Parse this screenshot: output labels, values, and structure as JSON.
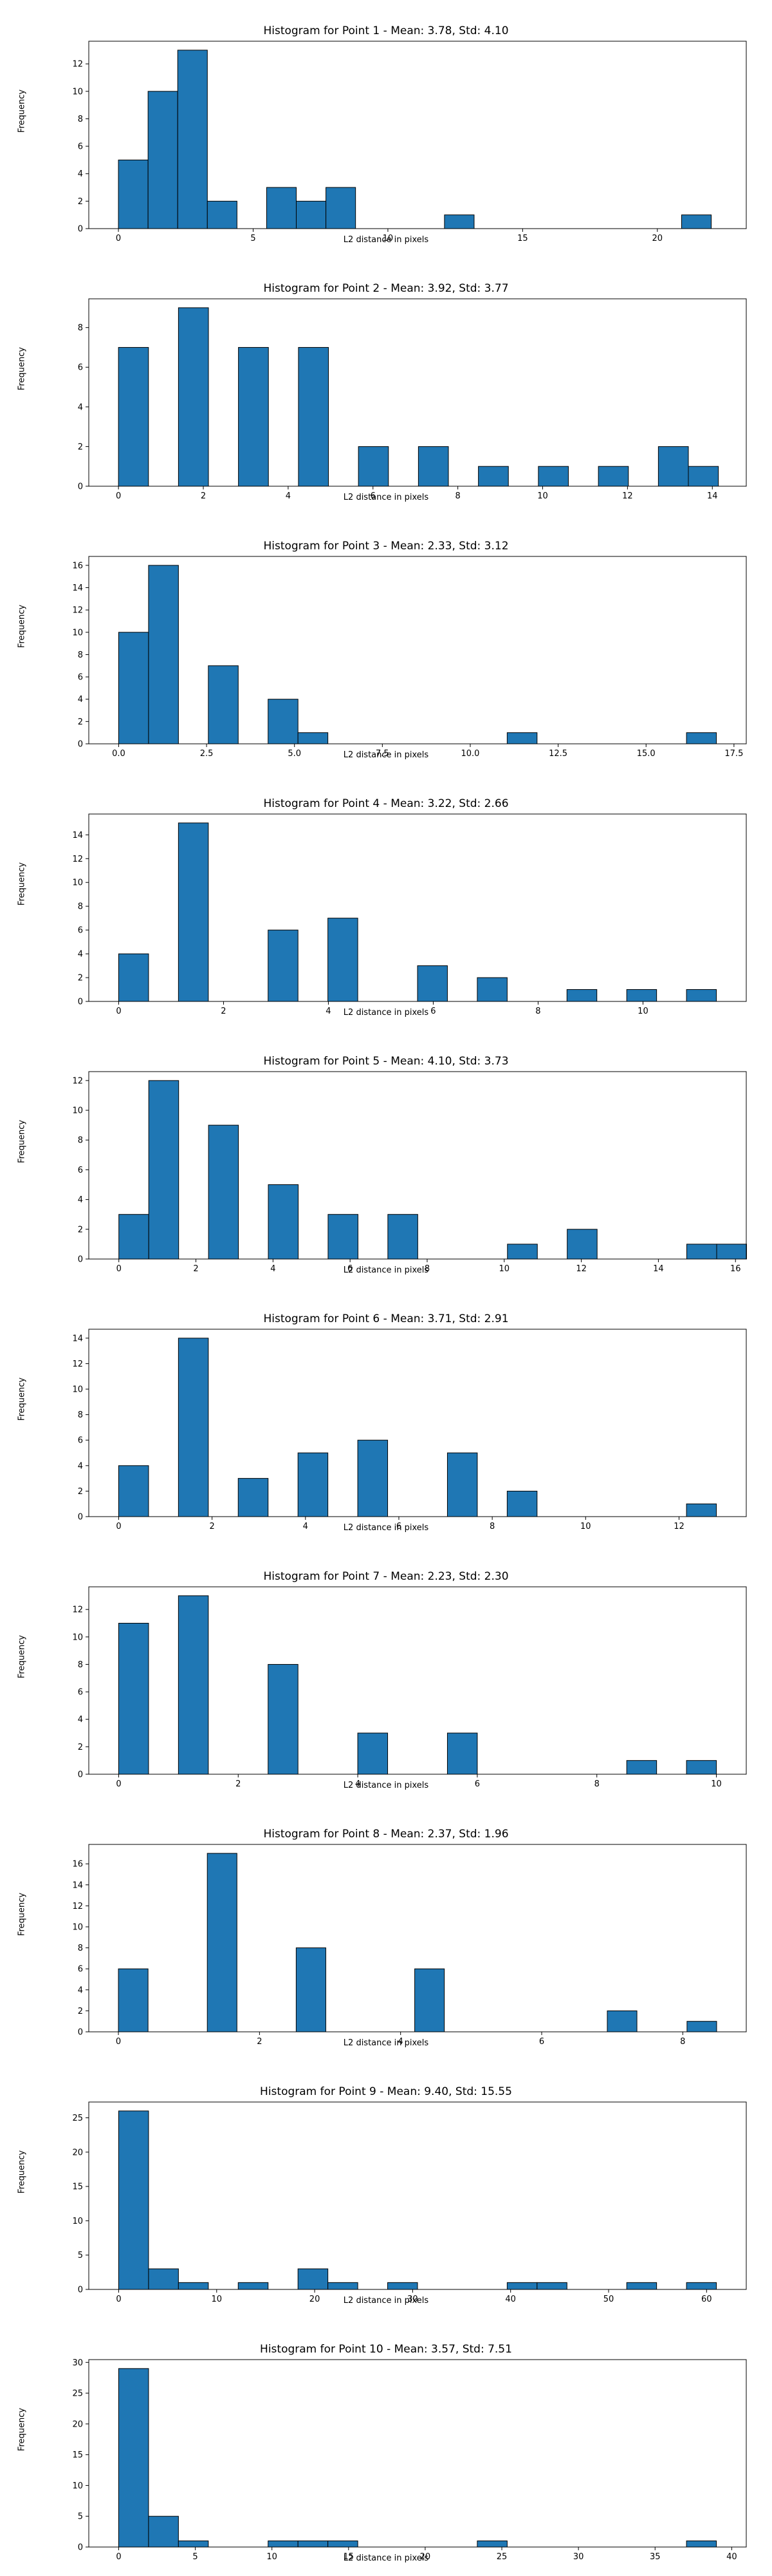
{
  "figure": {
    "bar_color": "#1f77b4",
    "edge_color": "#000000",
    "background": "#ffffff"
  },
  "chart_data": [
    {
      "type": "bar",
      "title": "Histogram for Point 1 - Mean: 3.78, Std: 4.10",
      "xlabel": "L2 distance in pixels",
      "ylabel": "Frequency",
      "xlim": [
        -1.1,
        23.3
      ],
      "ylim": [
        0,
        13.65
      ],
      "xticks": [
        0,
        5,
        10,
        15,
        20
      ],
      "yticks": [
        0,
        2,
        4,
        6,
        8,
        10,
        12
      ],
      "bin_width": 1.1,
      "bins": [
        {
          "x": 0.0,
          "count": 5
        },
        {
          "x": 1.1,
          "count": 10
        },
        {
          "x": 2.2,
          "count": 13
        },
        {
          "x": 3.3,
          "count": 2
        },
        {
          "x": 5.5,
          "count": 3
        },
        {
          "x": 6.6,
          "count": 2
        },
        {
          "x": 7.7,
          "count": 3
        },
        {
          "x": 12.1,
          "count": 1
        },
        {
          "x": 20.9,
          "count": 1
        }
      ]
    },
    {
      "type": "bar",
      "title": "Histogram for Point 2 - Mean: 3.92, Std: 3.77",
      "xlabel": "L2 distance in pixels",
      "ylabel": "Frequency",
      "xlim": [
        -0.7,
        14.8
      ],
      "ylim": [
        0,
        9.45
      ],
      "xticks": [
        0,
        2,
        4,
        6,
        8,
        10,
        12,
        14
      ],
      "yticks": [
        0,
        2,
        4,
        6,
        8
      ],
      "bin_width": 0.707,
      "bins": [
        {
          "x": 0.0,
          "count": 7
        },
        {
          "x": 1.414,
          "count": 9
        },
        {
          "x": 2.828,
          "count": 7
        },
        {
          "x": 4.243,
          "count": 7
        },
        {
          "x": 5.657,
          "count": 2
        },
        {
          "x": 7.071,
          "count": 2
        },
        {
          "x": 8.485,
          "count": 1
        },
        {
          "x": 9.899,
          "count": 1
        },
        {
          "x": 11.314,
          "count": 1
        },
        {
          "x": 12.728,
          "count": 2
        },
        {
          "x": 13.435,
          "count": 1
        }
      ]
    },
    {
      "type": "bar",
      "title": "Histogram for Point 3 - Mean: 2.33, Std: 3.12",
      "xlabel": "L2 distance in pixels",
      "ylabel": "Frequency",
      "xlim": [
        -0.85,
        17.85
      ],
      "ylim": [
        0,
        16.8
      ],
      "xticks": [
        0.0,
        2.5,
        5.0,
        7.5,
        10.0,
        12.5,
        15.0,
        17.5
      ],
      "yticks": [
        0,
        2,
        4,
        6,
        8,
        10,
        12,
        14,
        16
      ],
      "bin_width": 0.85,
      "bins": [
        {
          "x": 0.0,
          "count": 10
        },
        {
          "x": 0.85,
          "count": 16
        },
        {
          "x": 2.55,
          "count": 7
        },
        {
          "x": 4.25,
          "count": 4
        },
        {
          "x": 5.1,
          "count": 1
        },
        {
          "x": 11.05,
          "count": 1
        },
        {
          "x": 16.15,
          "count": 1
        }
      ]
    },
    {
      "type": "bar",
      "title": "Histogram for Point 4 - Mean: 3.22, Std: 2.66",
      "xlabel": "L2 distance in pixels",
      "ylabel": "Frequency",
      "xlim": [
        -0.57,
        11.97
      ],
      "ylim": [
        0,
        15.75
      ],
      "xticks": [
        0,
        2,
        4,
        6,
        8,
        10
      ],
      "yticks": [
        0,
        2,
        4,
        6,
        8,
        10,
        12,
        14
      ],
      "bin_width": 0.57,
      "bins": [
        {
          "x": 0.0,
          "count": 4
        },
        {
          "x": 1.14,
          "count": 15
        },
        {
          "x": 2.85,
          "count": 6
        },
        {
          "x": 3.99,
          "count": 7
        },
        {
          "x": 5.7,
          "count": 3
        },
        {
          "x": 6.84,
          "count": 2
        },
        {
          "x": 8.55,
          "count": 1
        },
        {
          "x": 9.69,
          "count": 1
        },
        {
          "x": 10.83,
          "count": 1
        }
      ]
    },
    {
      "type": "bar",
      "title": "Histogram for Point 5 - Mean: 4.10, Std: 3.73",
      "xlabel": "L2 distance in pixels",
      "ylabel": "Frequency",
      "xlim": [
        -0.78,
        16.28
      ],
      "ylim": [
        0,
        12.6
      ],
      "xticks": [
        0,
        2,
        4,
        6,
        8,
        10,
        12,
        14,
        16
      ],
      "yticks": [
        0,
        2,
        4,
        6,
        8,
        10,
        12
      ],
      "bin_width": 0.776,
      "bins": [
        {
          "x": 0.0,
          "count": 3
        },
        {
          "x": 0.776,
          "count": 12
        },
        {
          "x": 2.327,
          "count": 9
        },
        {
          "x": 3.878,
          "count": 5
        },
        {
          "x": 5.429,
          "count": 3
        },
        {
          "x": 6.98,
          "count": 3
        },
        {
          "x": 10.083,
          "count": 1
        },
        {
          "x": 11.634,
          "count": 2
        },
        {
          "x": 14.736,
          "count": 1
        },
        {
          "x": 15.512,
          "count": 1
        }
      ]
    },
    {
      "type": "bar",
      "title": "Histogram for Point 6 - Mean: 3.71, Std: 2.91",
      "xlabel": "L2 distance in pixels",
      "ylabel": "Frequency",
      "xlim": [
        -0.64,
        13.44
      ],
      "ylim": [
        0,
        14.7
      ],
      "xticks": [
        0,
        2,
        4,
        6,
        8,
        10,
        12
      ],
      "yticks": [
        0,
        2,
        4,
        6,
        8,
        10,
        12,
        14
      ],
      "bin_width": 0.64,
      "bins": [
        {
          "x": 0.0,
          "count": 4
        },
        {
          "x": 1.28,
          "count": 14
        },
        {
          "x": 2.56,
          "count": 3
        },
        {
          "x": 3.84,
          "count": 5
        },
        {
          "x": 5.12,
          "count": 6
        },
        {
          "x": 7.04,
          "count": 5
        },
        {
          "x": 8.32,
          "count": 2
        },
        {
          "x": 12.16,
          "count": 1
        }
      ]
    },
    {
      "type": "bar",
      "title": "Histogram for Point 7 - Mean: 2.23, Std: 2.30",
      "xlabel": "L2 distance in pixels",
      "ylabel": "Frequency",
      "xlim": [
        -0.5,
        10.5
      ],
      "ylim": [
        0,
        13.65
      ],
      "xticks": [
        0,
        2,
        4,
        6,
        8,
        10
      ],
      "yticks": [
        0,
        2,
        4,
        6,
        8,
        10,
        12
      ],
      "bin_width": 0.5,
      "bins": [
        {
          "x": 0.0,
          "count": 11
        },
        {
          "x": 1.0,
          "count": 13
        },
        {
          "x": 2.5,
          "count": 8
        },
        {
          "x": 4.0,
          "count": 3
        },
        {
          "x": 5.5,
          "count": 3
        },
        {
          "x": 8.5,
          "count": 1
        },
        {
          "x": 9.5,
          "count": 1
        }
      ]
    },
    {
      "type": "bar",
      "title": "Histogram for Point 8 - Mean: 2.37, Std: 1.96",
      "xlabel": "L2 distance in pixels",
      "ylabel": "Frequency",
      "xlim": [
        -0.42,
        8.9
      ],
      "ylim": [
        0,
        17.85
      ],
      "xticks": [
        0,
        2,
        4,
        6,
        8
      ],
      "yticks": [
        0,
        2,
        4,
        6,
        8,
        10,
        12,
        14,
        16
      ],
      "bin_width": 0.42,
      "bins": [
        {
          "x": 0.0,
          "count": 6
        },
        {
          "x": 1.26,
          "count": 17
        },
        {
          "x": 2.52,
          "count": 8
        },
        {
          "x": 4.2,
          "count": 6
        },
        {
          "x": 6.93,
          "count": 2
        },
        {
          "x": 8.06,
          "count": 1
        }
      ]
    },
    {
      "type": "bar",
      "title": "Histogram for Point 9 - Mean: 9.40, Std: 15.55",
      "xlabel": "L2 distance in pixels",
      "ylabel": "Frequency",
      "xlim": [
        -3.05,
        64.05
      ],
      "ylim": [
        0,
        27.3
      ],
      "xticks": [
        0,
        10,
        20,
        30,
        40,
        50,
        60
      ],
      "yticks": [
        0,
        5,
        10,
        15,
        20,
        25
      ],
      "bin_width": 3.05,
      "bins": [
        {
          "x": 0.0,
          "count": 26
        },
        {
          "x": 3.05,
          "count": 3
        },
        {
          "x": 6.1,
          "count": 1
        },
        {
          "x": 12.2,
          "count": 1
        },
        {
          "x": 18.3,
          "count": 3
        },
        {
          "x": 21.35,
          "count": 1
        },
        {
          "x": 27.45,
          "count": 1
        },
        {
          "x": 39.65,
          "count": 1
        },
        {
          "x": 42.7,
          "count": 1
        },
        {
          "x": 51.85,
          "count": 1
        },
        {
          "x": 57.95,
          "count": 1
        }
      ]
    },
    {
      "type": "bar",
      "title": "Histogram for Point 10 - Mean: 3.57, Std: 7.51",
      "xlabel": "L2 distance in pixels",
      "ylabel": "Frequency",
      "xlim": [
        -1.95,
        40.95
      ],
      "ylim": [
        0,
        30.45
      ],
      "xticks": [
        0,
        5,
        10,
        15,
        20,
        25,
        30,
        35,
        40
      ],
      "yticks": [
        0,
        5,
        10,
        15,
        20,
        25,
        30
      ],
      "bin_width": 1.95,
      "bins": [
        {
          "x": 0.0,
          "count": 29
        },
        {
          "x": 1.95,
          "count": 5
        },
        {
          "x": 3.9,
          "count": 1
        },
        {
          "x": 9.75,
          "count": 1
        },
        {
          "x": 11.7,
          "count": 1
        },
        {
          "x": 13.65,
          "count": 1
        },
        {
          "x": 23.4,
          "count": 1
        },
        {
          "x": 37.05,
          "count": 1
        }
      ]
    }
  ]
}
